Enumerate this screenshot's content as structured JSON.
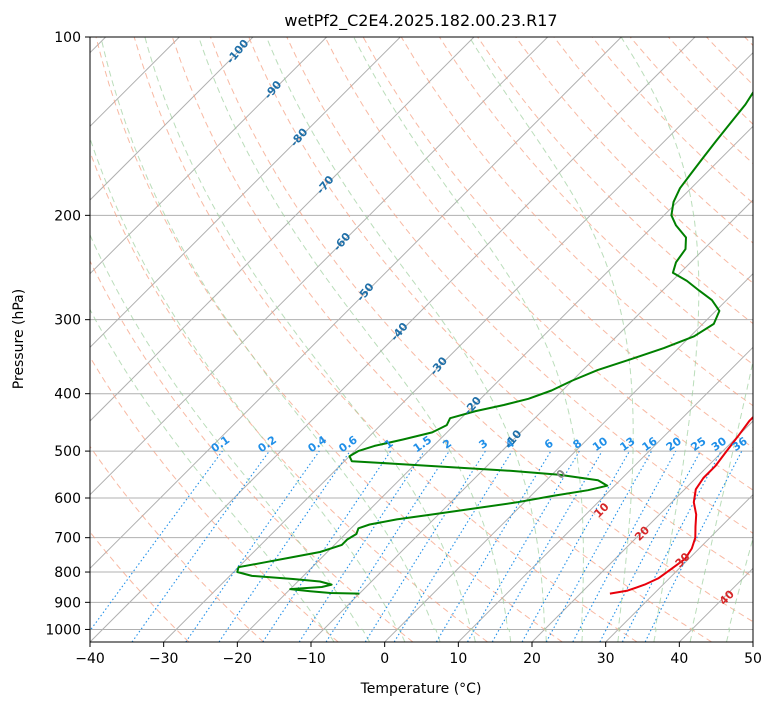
{
  "chart_data": {
    "type": "line",
    "title": "wetPf2_C2E4.2025.182.00.23.R17",
    "xlabel": "Temperature (°C)",
    "ylabel": "Pressure (hPa)",
    "xlim": [
      -40,
      50
    ],
    "ylim": [
      1050,
      100
    ],
    "yscale": "log",
    "skew": true,
    "grid": true,
    "x_ticks": [
      "−40",
      "−30",
      "−20",
      "−10",
      "0",
      "10",
      "20",
      "30",
      "40",
      "50"
    ],
    "x_tick_values": [
      -40,
      -30,
      -20,
      -10,
      0,
      10,
      20,
      30,
      40,
      50
    ],
    "y_ticks": [
      "100",
      "200",
      "300",
      "400",
      "500",
      "600",
      "700",
      "800",
      "900",
      "1000"
    ],
    "y_tick_values": [
      100,
      200,
      300,
      400,
      500,
      600,
      700,
      800,
      900,
      1000
    ],
    "series": [
      {
        "color": "#e8000b",
        "kind": "temperature",
        "points": [
          [
            870,
            24
          ],
          [
            860,
            26
          ],
          [
            840,
            27.5
          ],
          [
            820,
            28.5
          ],
          [
            790,
            29
          ],
          [
            760,
            29.5
          ],
          [
            730,
            29
          ],
          [
            700,
            28
          ],
          [
            670,
            26.5
          ],
          [
            640,
            25
          ],
          [
            610,
            23
          ],
          [
            580,
            21.5
          ],
          [
            555,
            21
          ],
          [
            530,
            21
          ],
          [
            500,
            20.5
          ],
          [
            470,
            20
          ],
          [
            445,
            19.5
          ],
          [
            420,
            19.5
          ],
          [
            400,
            19
          ],
          [
            380,
            17.5
          ],
          [
            360,
            15.5
          ],
          [
            340,
            13
          ],
          [
            320,
            10.5
          ],
          [
            300,
            8
          ],
          [
            280,
            6
          ],
          [
            260,
            4
          ],
          [
            240,
            1.5
          ],
          [
            225,
            -0.5
          ],
          [
            215,
            -2
          ],
          [
            205,
            -3
          ],
          [
            195,
            -3.5
          ],
          [
            180,
            -3.5
          ],
          [
            165,
            -4
          ],
          [
            150,
            -5
          ],
          [
            140,
            -6
          ],
          [
            130,
            -7
          ],
          [
            120,
            -6
          ],
          [
            112,
            -4
          ],
          [
            106,
            -1
          ],
          [
            100,
            1
          ]
        ]
      },
      {
        "color": "#008000",
        "kind": "dewpoint",
        "points": [
          [
            870,
            -10
          ],
          [
            868,
            -14
          ],
          [
            862,
            -17
          ],
          [
            855,
            -20
          ],
          [
            848,
            -16
          ],
          [
            840,
            -15
          ],
          [
            830,
            -17
          ],
          [
            822,
            -21
          ],
          [
            812,
            -27
          ],
          [
            800,
            -29.5
          ],
          [
            785,
            -30
          ],
          [
            770,
            -27
          ],
          [
            755,
            -24
          ],
          [
            740,
            -21
          ],
          [
            720,
            -19
          ],
          [
            705,
            -19
          ],
          [
            690,
            -18.5
          ],
          [
            675,
            -19
          ],
          [
            665,
            -18
          ],
          [
            652,
            -15
          ],
          [
            640,
            -11
          ],
          [
            625,
            -6
          ],
          [
            610,
            -1
          ],
          [
            595,
            3
          ],
          [
            582,
            7
          ],
          [
            572,
            9
          ],
          [
            560,
            7
          ],
          [
            548,
            1
          ],
          [
            540,
            -6
          ],
          [
            533,
            -14
          ],
          [
            526,
            -22
          ],
          [
            520,
            -29
          ],
          [
            510,
            -30
          ],
          [
            500,
            -29.5
          ],
          [
            490,
            -28
          ],
          [
            478,
            -25
          ],
          [
            465,
            -22
          ],
          [
            452,
            -21
          ],
          [
            440,
            -21.5
          ],
          [
            428,
            -19
          ],
          [
            418,
            -16
          ],
          [
            408,
            -13.5
          ],
          [
            395,
            -11.5
          ],
          [
            380,
            -10
          ],
          [
            365,
            -8
          ],
          [
            350,
            -5
          ],
          [
            335,
            -2
          ],
          [
            320,
            0.5
          ],
          [
            305,
            1.5
          ],
          [
            290,
            0.5
          ],
          [
            278,
            -2
          ],
          [
            268,
            -5
          ],
          [
            258,
            -8
          ],
          [
            250,
            -11
          ],
          [
            240,
            -12
          ],
          [
            228,
            -12.5
          ],
          [
            218,
            -14
          ],
          [
            208,
            -17
          ],
          [
            200,
            -19
          ],
          [
            190,
            -20.5
          ],
          [
            180,
            -21.5
          ],
          [
            170,
            -22
          ],
          [
            160,
            -22.5
          ],
          [
            150,
            -23
          ],
          [
            140,
            -23.5
          ],
          [
            130,
            -24
          ],
          [
            120,
            -25
          ],
          [
            115,
            -26
          ],
          [
            110,
            -26.5
          ],
          [
            105,
            -27
          ],
          [
            100,
            -27
          ]
        ]
      }
    ],
    "dry_adiabat_labels": [
      "-100",
      "-90",
      "-80",
      "-70",
      "-60",
      "-50",
      "-40",
      "-30",
      "-20",
      "-10"
    ],
    "moist_adiabat_labels": [
      "0",
      "10",
      "20",
      "30",
      "40"
    ],
    "mixing_ratio_labels": [
      "0.1",
      "0.2",
      "0.4",
      "0.6",
      "1",
      "1.5",
      "2",
      "3",
      "4",
      "6",
      "8",
      "10",
      "13",
      "16",
      "20",
      "25",
      "30",
      "36"
    ],
    "mixing_ratio_values": [
      0.1,
      0.2,
      0.4,
      0.6,
      1,
      1.5,
      2,
      3,
      4,
      6,
      8,
      10,
      13,
      16,
      20,
      25,
      30,
      36
    ]
  }
}
